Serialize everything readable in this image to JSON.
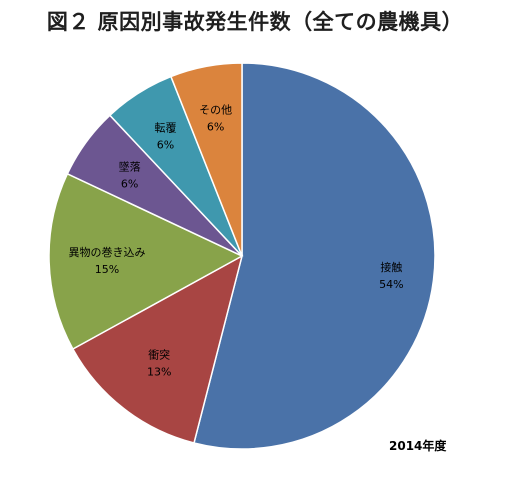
{
  "chart_data": {
    "type": "pie",
    "title": "図２ 原因別事故発生件数（全ての農機具）",
    "note": "2014年度",
    "slices": [
      {
        "label": "接触",
        "value": 54,
        "value_label": "54%",
        "color": "#4a72a8"
      },
      {
        "label": "衝突",
        "value": 13,
        "value_label": "13%",
        "color": "#a84543"
      },
      {
        "label": "異物の巻き込み",
        "value": 15,
        "value_label": "15%",
        "color": "#88a34a"
      },
      {
        "label": "墜落",
        "value": 6,
        "value_label": "6%",
        "color": "#6c5691"
      },
      {
        "label": "転覆",
        "value": 6,
        "value_label": "6%",
        "color": "#3f98ae"
      },
      {
        "label": "その他",
        "value": 6,
        "value_label": "6%",
        "color": "#db843d"
      }
    ],
    "start": "12 o'clock",
    "direction": "clockwise",
    "legend": "none"
  }
}
